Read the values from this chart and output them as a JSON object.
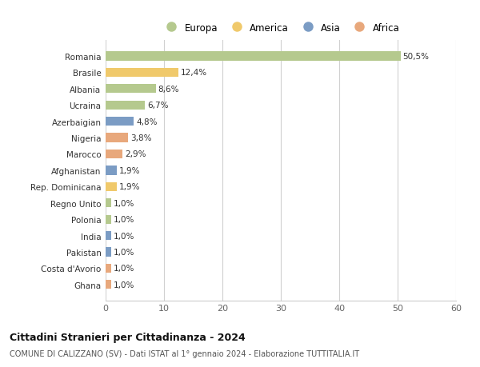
{
  "countries": [
    "Romania",
    "Brasile",
    "Albania",
    "Ucraina",
    "Azerbaigian",
    "Nigeria",
    "Marocco",
    "Afghanistan",
    "Rep. Dominicana",
    "Regno Unito",
    "Polonia",
    "India",
    "Pakistan",
    "Costa d'Avorio",
    "Ghana"
  ],
  "values": [
    50.5,
    12.4,
    8.6,
    6.7,
    4.8,
    3.8,
    2.9,
    1.9,
    1.9,
    1.0,
    1.0,
    1.0,
    1.0,
    1.0,
    1.0
  ],
  "labels": [
    "50,5%",
    "12,4%",
    "8,6%",
    "6,7%",
    "4,8%",
    "3,8%",
    "2,9%",
    "1,9%",
    "1,9%",
    "1,0%",
    "1,0%",
    "1,0%",
    "1,0%",
    "1,0%",
    "1,0%"
  ],
  "continents": [
    "Europa",
    "America",
    "Europa",
    "Europa",
    "Asia",
    "Africa",
    "Africa",
    "Asia",
    "America",
    "Europa",
    "Europa",
    "Asia",
    "Asia",
    "Africa",
    "Africa"
  ],
  "colors": {
    "Europa": "#b5c98e",
    "America": "#f0c96b",
    "Asia": "#7b9cc4",
    "Africa": "#e8a87c"
  },
  "legend_order": [
    "Europa",
    "America",
    "Asia",
    "Africa"
  ],
  "legend_colors": [
    "#b5c98e",
    "#f0c96b",
    "#7b9cc4",
    "#e8a87c"
  ],
  "title": "Cittadini Stranieri per Cittadinanza - 2024",
  "subtitle": "COMUNE DI CALIZZANO (SV) - Dati ISTAT al 1° gennaio 2024 - Elaborazione TUTTITALIA.IT",
  "xlim": [
    0,
    60
  ],
  "xticks": [
    0,
    10,
    20,
    30,
    40,
    50,
    60
  ],
  "background_color": "#ffffff",
  "grid_color": "#d0d0d0",
  "bar_height": 0.55
}
